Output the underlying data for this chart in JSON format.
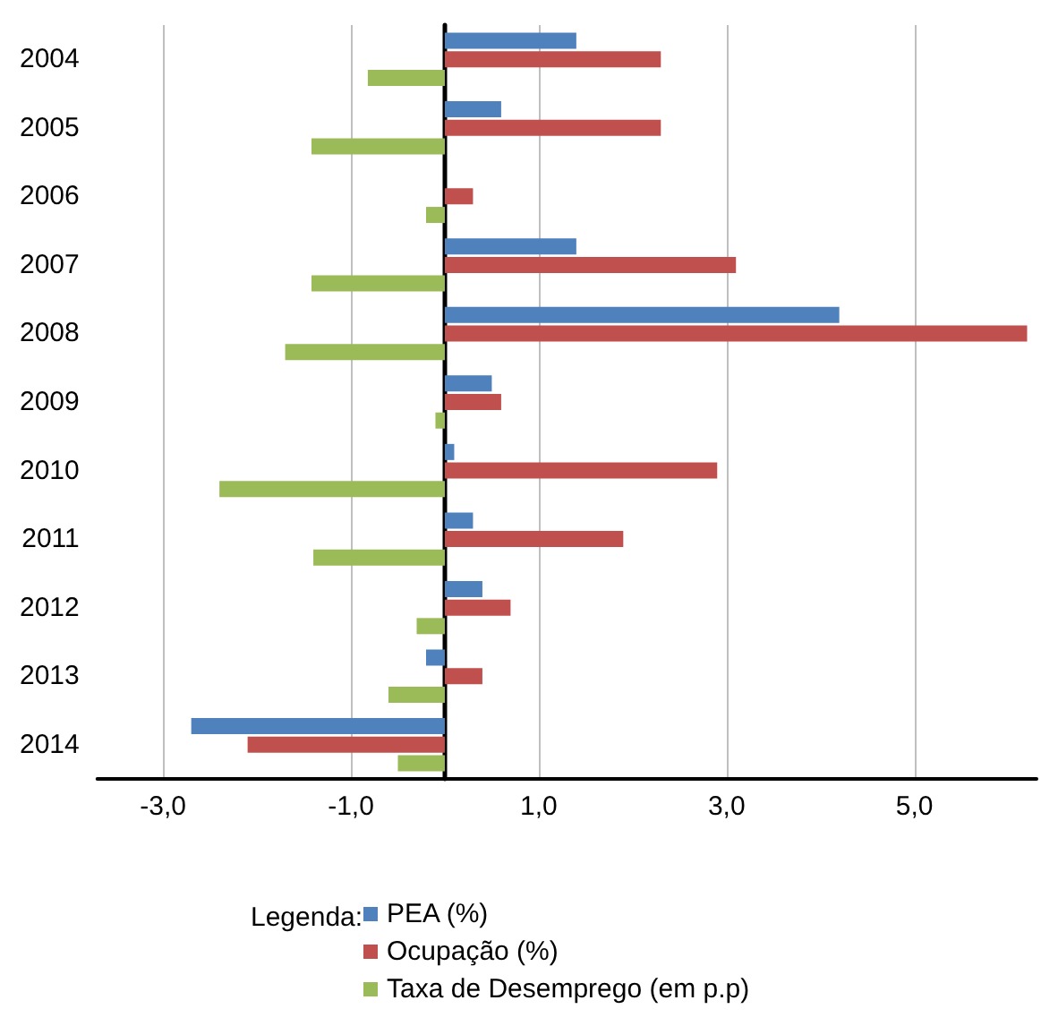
{
  "chart_data": {
    "type": "bar",
    "orientation": "horizontal",
    "categories": [
      "2004",
      "2005",
      "2006",
      "2007",
      "2008",
      "2009",
      "2010",
      "2011",
      "2012",
      "2013",
      "2014"
    ],
    "series": [
      {
        "name": "PEA (%)",
        "color": "#4f81bd",
        "values": [
          1.4,
          0.6,
          0,
          1.4,
          4.2,
          0.5,
          0.1,
          0.3,
          0.4,
          -0.2,
          -2.7
        ]
      },
      {
        "name": "Ocupação (%)",
        "color": "#c0504d",
        "values": [
          2.3,
          2.3,
          0.3,
          3.1,
          6.2,
          0.6,
          2.9,
          1.9,
          0.7,
          0.4,
          -2.1
        ]
      },
      {
        "name": "Taxa de Desemprego (em p.p)",
        "color": "#9bbb59",
        "values": [
          -0.82,
          -1.42,
          -0.2,
          -1.42,
          -1.7,
          -0.1,
          -2.4,
          -1.4,
          -0.3,
          -0.6,
          -0.5
        ]
      }
    ],
    "xlim": [
      -3.7,
      6.3
    ],
    "xticks": [
      {
        "value": -3,
        "label": "-3,0"
      },
      {
        "value": -1,
        "label": "-1,0"
      },
      {
        "value": 1,
        "label": "1,0"
      },
      {
        "value": 3,
        "label": "3,0"
      },
      {
        "value": 5,
        "label": "5,0"
      }
    ],
    "grid": "x",
    "legend": "bottom",
    "legend_title": "Legenda:"
  }
}
